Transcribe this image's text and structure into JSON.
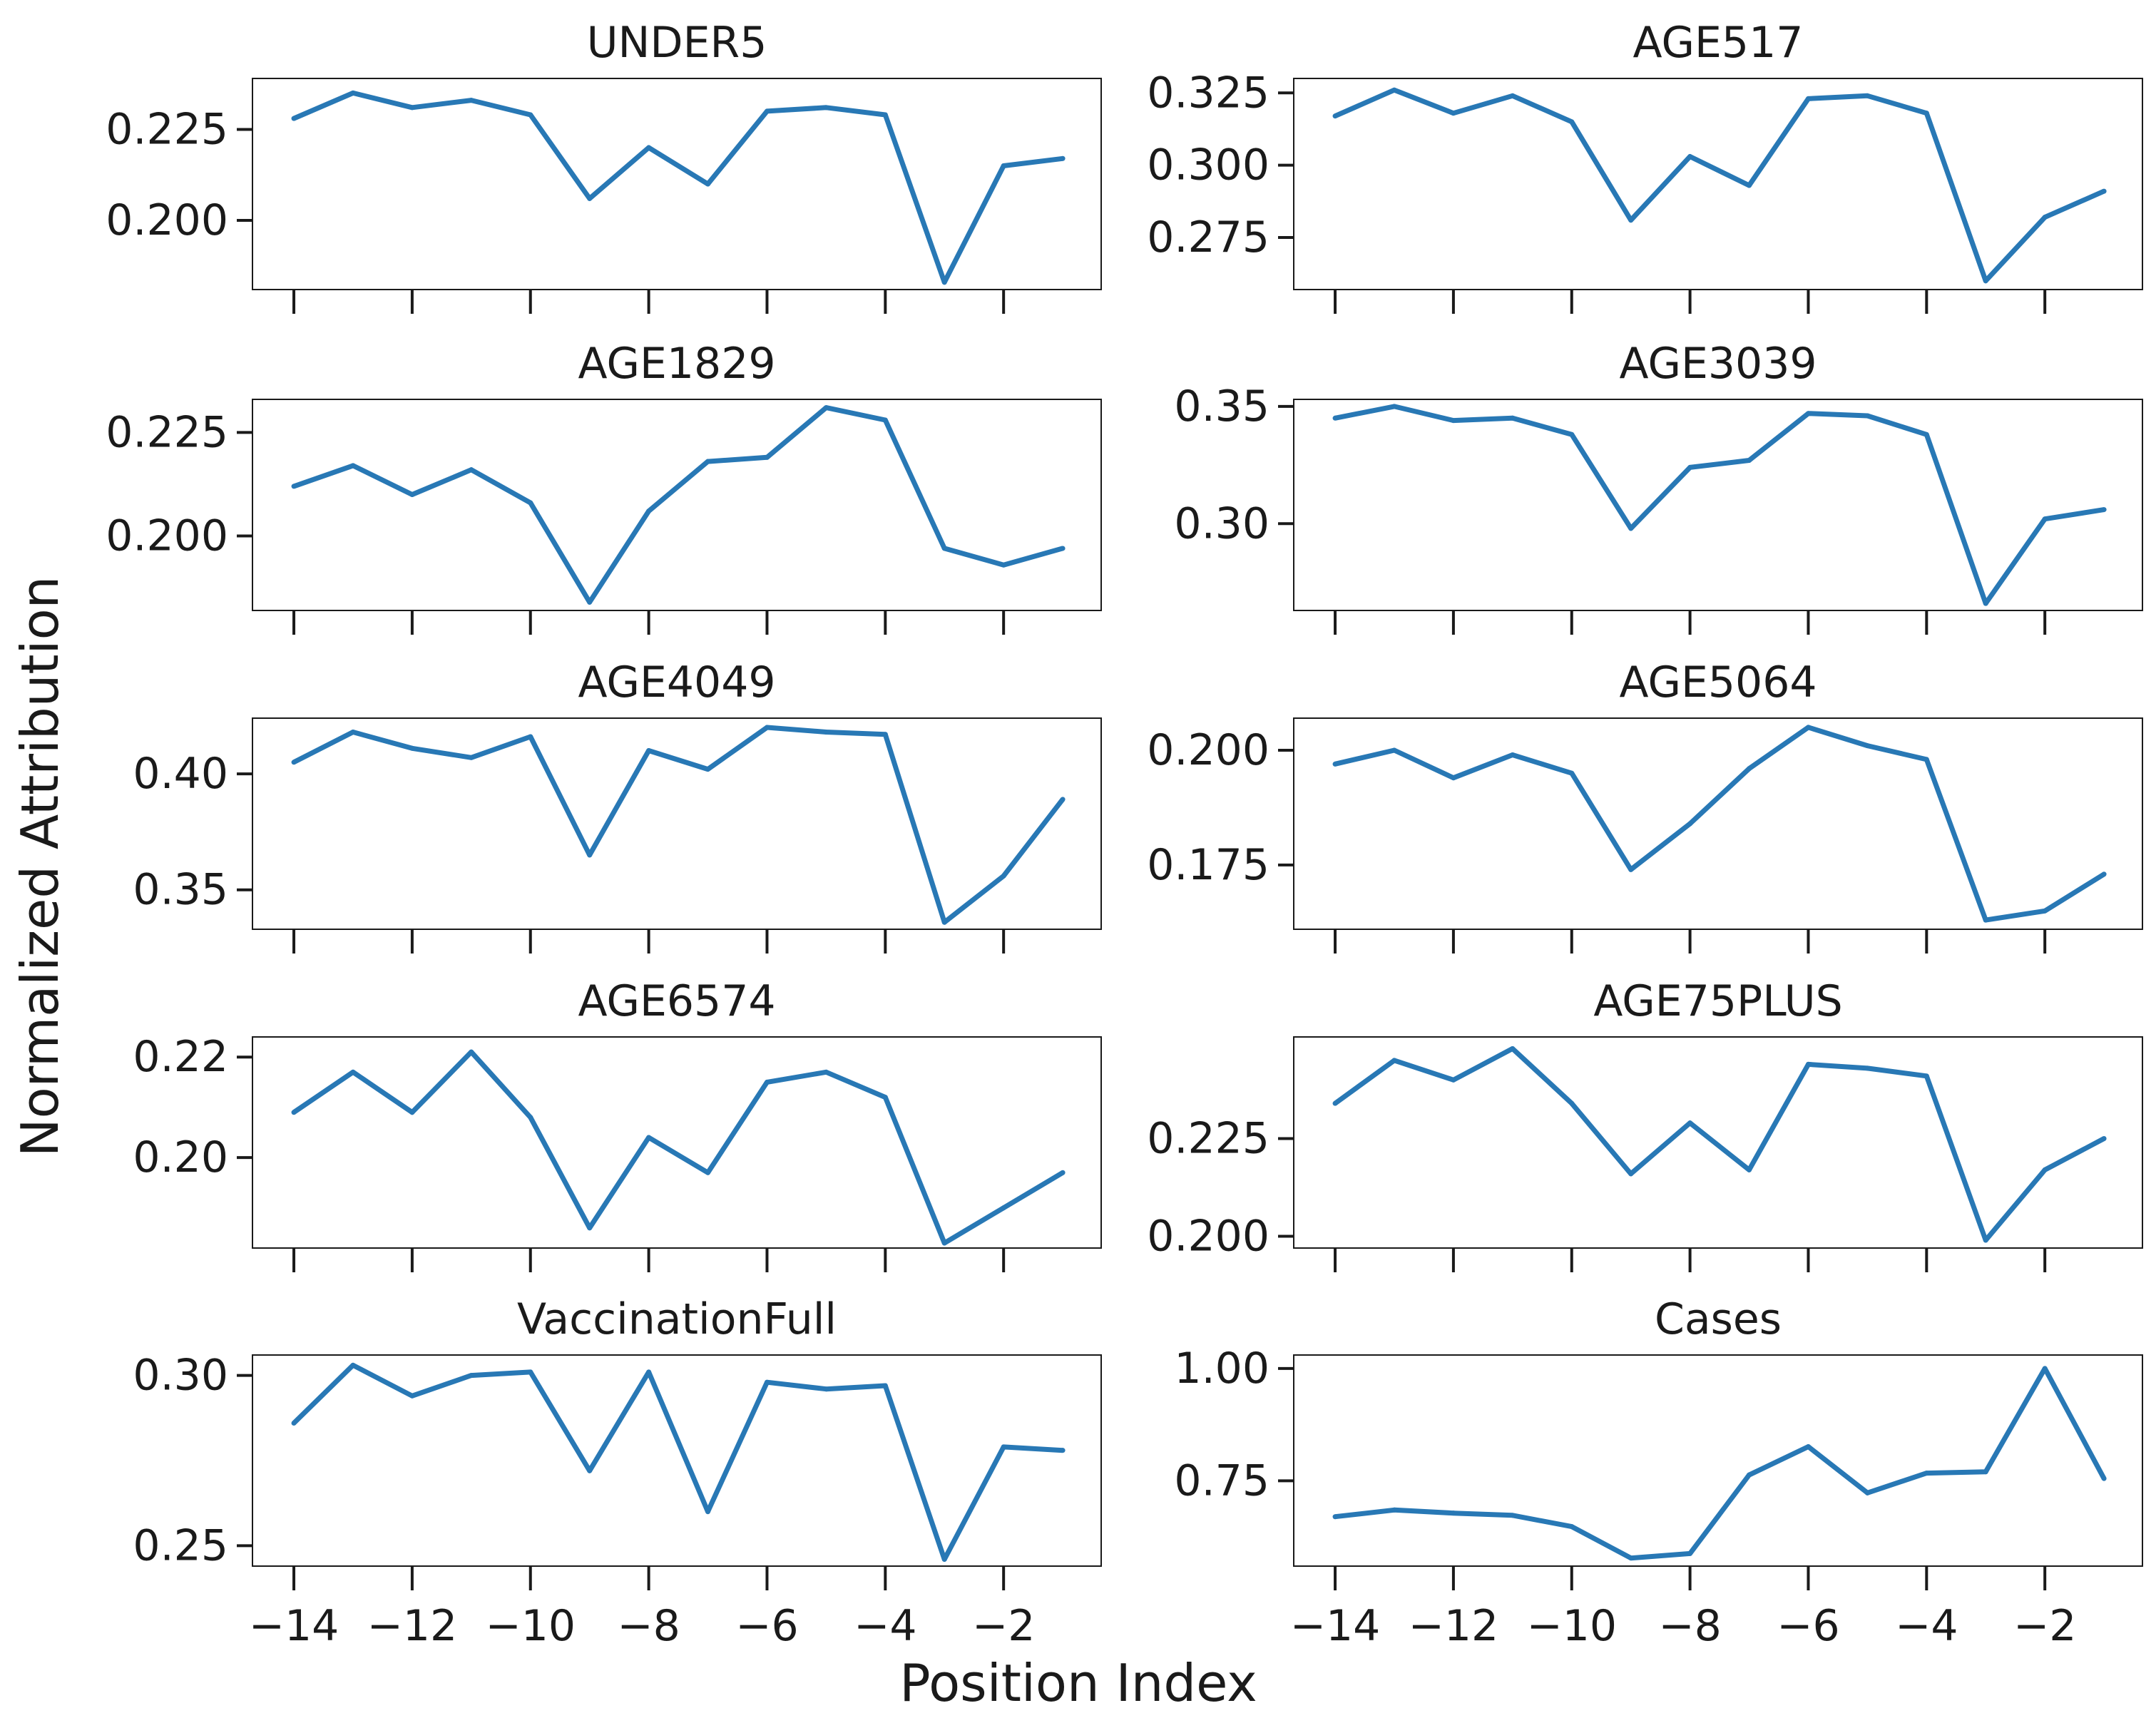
{
  "figure": {
    "ylabel": "Normalized Attribution",
    "xlabel": "Position Index",
    "line_color": "#2878b5"
  },
  "chart_data": [
    {
      "type": "line",
      "title": "UNDER5",
      "x": [
        -14,
        -13,
        -12,
        -11,
        -10,
        -9,
        -8,
        -7,
        -6,
        -5,
        -4,
        -3,
        -2,
        -1
      ],
      "y": [
        0.228,
        0.235,
        0.231,
        0.233,
        0.229,
        0.206,
        0.22,
        0.21,
        0.23,
        0.231,
        0.229,
        0.183,
        0.215,
        0.217
      ],
      "ylim": [
        0.181,
        0.239
      ],
      "yticks": [
        0.2,
        0.225
      ],
      "ytick_labels": [
        "0.200",
        "0.225"
      ],
      "xticks": [
        -14,
        -12,
        -10,
        -8,
        -6,
        -4,
        -2
      ],
      "xtick_labels": []
    },
    {
      "type": "line",
      "title": "AGE517",
      "x": [
        -14,
        -13,
        -12,
        -11,
        -10,
        -9,
        -8,
        -7,
        -6,
        -5,
        -4,
        -3,
        -2,
        -1
      ],
      "y": [
        0.317,
        0.326,
        0.318,
        0.324,
        0.315,
        0.281,
        0.303,
        0.293,
        0.323,
        0.324,
        0.318,
        0.26,
        0.282,
        0.291
      ],
      "ylim": [
        0.257,
        0.33
      ],
      "yticks": [
        0.275,
        0.3,
        0.325
      ],
      "ytick_labels": [
        "0.275",
        "0.300",
        "0.325"
      ],
      "xticks": [
        -14,
        -12,
        -10,
        -8,
        -6,
        -4,
        -2
      ],
      "xtick_labels": []
    },
    {
      "type": "line",
      "title": "AGE1829",
      "x": [
        -14,
        -13,
        -12,
        -11,
        -10,
        -9,
        -8,
        -7,
        -6,
        -5,
        -4,
        -3,
        -2,
        -1
      ],
      "y": [
        0.212,
        0.217,
        0.21,
        0.216,
        0.208,
        0.184,
        0.206,
        0.218,
        0.219,
        0.231,
        0.228,
        0.197,
        0.193,
        0.197
      ],
      "ylim": [
        0.182,
        0.233
      ],
      "yticks": [
        0.2,
        0.225
      ],
      "ytick_labels": [
        "0.200",
        "0.225"
      ],
      "xticks": [
        -14,
        -12,
        -10,
        -8,
        -6,
        -4,
        -2
      ],
      "xtick_labels": []
    },
    {
      "type": "line",
      "title": "AGE3039",
      "x": [
        -14,
        -13,
        -12,
        -11,
        -10,
        -9,
        -8,
        -7,
        -6,
        -5,
        -4,
        -3,
        -2,
        -1
      ],
      "y": [
        0.345,
        0.35,
        0.344,
        0.345,
        0.338,
        0.298,
        0.324,
        0.327,
        0.347,
        0.346,
        0.338,
        0.266,
        0.302,
        0.306
      ],
      "ylim": [
        0.263,
        0.353
      ],
      "yticks": [
        0.3,
        0.35
      ],
      "ytick_labels": [
        "0.30",
        "0.35"
      ],
      "xticks": [
        -14,
        -12,
        -10,
        -8,
        -6,
        -4,
        -2
      ],
      "xtick_labels": []
    },
    {
      "type": "line",
      "title": "AGE4049",
      "x": [
        -14,
        -13,
        -12,
        -11,
        -10,
        -9,
        -8,
        -7,
        -6,
        -5,
        -4,
        -3,
        -2,
        -1
      ],
      "y": [
        0.405,
        0.418,
        0.411,
        0.407,
        0.416,
        0.365,
        0.41,
        0.402,
        0.42,
        0.418,
        0.417,
        0.336,
        0.356,
        0.389
      ],
      "ylim": [
        0.333,
        0.424
      ],
      "yticks": [
        0.35,
        0.4
      ],
      "ytick_labels": [
        "0.35",
        "0.40"
      ],
      "xticks": [
        -14,
        -12,
        -10,
        -8,
        -6,
        -4,
        -2
      ],
      "xtick_labels": []
    },
    {
      "type": "line",
      "title": "AGE5064",
      "x": [
        -14,
        -13,
        -12,
        -11,
        -10,
        -9,
        -8,
        -7,
        -6,
        -5,
        -4,
        -3,
        -2,
        -1
      ],
      "y": [
        0.197,
        0.2,
        0.194,
        0.199,
        0.195,
        0.174,
        0.184,
        0.196,
        0.205,
        0.201,
        0.198,
        0.163,
        0.165,
        0.173
      ],
      "ylim": [
        0.161,
        0.207
      ],
      "yticks": [
        0.175,
        0.2
      ],
      "ytick_labels": [
        "0.175",
        "0.200"
      ],
      "xticks": [
        -14,
        -12,
        -10,
        -8,
        -6,
        -4,
        -2
      ],
      "xtick_labels": []
    },
    {
      "type": "line",
      "title": "AGE6574",
      "x": [
        -14,
        -13,
        -12,
        -11,
        -10,
        -9,
        -8,
        -7,
        -6,
        -5,
        -4,
        -3,
        -2,
        -1
      ],
      "y": [
        0.209,
        0.217,
        0.209,
        0.221,
        0.208,
        0.186,
        0.204,
        0.197,
        0.215,
        0.217,
        0.212,
        0.183,
        0.19,
        0.197
      ],
      "ylim": [
        0.182,
        0.224
      ],
      "yticks": [
        0.2,
        0.22
      ],
      "ytick_labels": [
        "0.20",
        "0.22"
      ],
      "xticks": [
        -14,
        -12,
        -10,
        -8,
        -6,
        -4,
        -2
      ],
      "xtick_labels": []
    },
    {
      "type": "line",
      "title": "AGE75PLUS",
      "x": [
        -14,
        -13,
        -12,
        -11,
        -10,
        -9,
        -8,
        -7,
        -6,
        -5,
        -4,
        -3,
        -2,
        -1
      ],
      "y": [
        0.234,
        0.245,
        0.24,
        0.248,
        0.234,
        0.216,
        0.229,
        0.217,
        0.244,
        0.243,
        0.241,
        0.199,
        0.217,
        0.225
      ],
      "ylim": [
        0.197,
        0.251
      ],
      "yticks": [
        0.2,
        0.225
      ],
      "ytick_labels": [
        "0.200",
        "0.225"
      ],
      "xticks": [
        -14,
        -12,
        -10,
        -8,
        -6,
        -4,
        -2
      ],
      "xtick_labels": []
    },
    {
      "type": "line",
      "title": "VaccinationFull",
      "x": [
        -14,
        -13,
        -12,
        -11,
        -10,
        -9,
        -8,
        -7,
        -6,
        -5,
        -4,
        -3,
        -2,
        -1
      ],
      "y": [
        0.286,
        0.303,
        0.294,
        0.3,
        0.301,
        0.272,
        0.301,
        0.26,
        0.298,
        0.296,
        0.297,
        0.246,
        0.279,
        0.278
      ],
      "ylim": [
        0.244,
        0.306
      ],
      "yticks": [
        0.25,
        0.3
      ],
      "ytick_labels": [
        "0.25",
        "0.30"
      ],
      "xticks": [
        -14,
        -12,
        -10,
        -8,
        -6,
        -4,
        -2
      ],
      "xtick_labels": [
        "−14",
        "−12",
        "−10",
        "−8",
        "−6",
        "−4",
        "−2"
      ]
    },
    {
      "type": "line",
      "title": "Cases",
      "x": [
        -14,
        -13,
        -12,
        -11,
        -10,
        -9,
        -8,
        -7,
        -6,
        -5,
        -4,
        -3,
        -2,
        -1
      ],
      "y": [
        0.67,
        0.685,
        0.678,
        0.673,
        0.648,
        0.578,
        0.588,
        0.763,
        0.826,
        0.723,
        0.767,
        0.77,
        1.0,
        0.755
      ],
      "ylim": [
        0.56,
        1.03
      ],
      "yticks": [
        0.75,
        1.0
      ],
      "ytick_labels": [
        "0.75",
        "1.00"
      ],
      "xticks": [
        -14,
        -12,
        -10,
        -8,
        -6,
        -4,
        -2
      ],
      "xtick_labels": [
        "−14",
        "−12",
        "−10",
        "−8",
        "−6",
        "−4",
        "−2"
      ]
    }
  ]
}
